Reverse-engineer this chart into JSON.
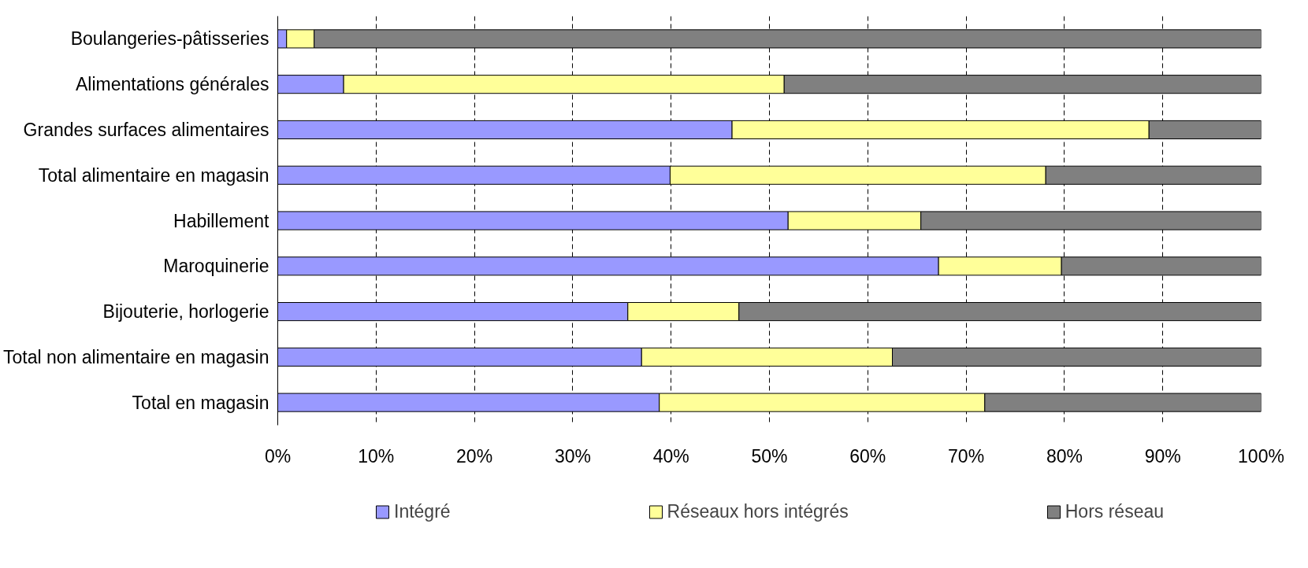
{
  "chart_data": {
    "type": "bar",
    "orientation": "horizontal",
    "stacked": true,
    "categories": [
      "Boulangeries-pâtisseries",
      "Alimentations générales",
      "Grandes surfaces alimentaires",
      "Total alimentaire en magasin",
      "Habillement",
      "Maroquinerie",
      "Bijouterie, horlogerie",
      "Total non alimentaire en magasin",
      "Total en magasin"
    ],
    "series": [
      {
        "name": "Intégré",
        "color": "#9999ff",
        "values": [
          0.9,
          6.7,
          46.2,
          39.9,
          51.9,
          67.2,
          35.6,
          37.0,
          38.8
        ]
      },
      {
        "name": "Réseaux hors intégrés",
        "color": "#ffff99",
        "values": [
          2.8,
          44.8,
          42.4,
          38.2,
          13.5,
          12.5,
          11.3,
          25.5,
          33.1
        ]
      },
      {
        "name": "Hors réseau",
        "color": "#808080",
        "values": [
          96.3,
          48.5,
          11.4,
          21.9,
          34.6,
          20.3,
          53.1,
          37.5,
          28.1
        ]
      }
    ],
    "xlim": [
      0,
      100
    ],
    "xticks": [
      {
        "value": 0,
        "label": "0%"
      },
      {
        "value": 10,
        "label": "10%"
      },
      {
        "value": 20,
        "label": "20%"
      },
      {
        "value": 30,
        "label": "30%"
      },
      {
        "value": 40,
        "label": "40%"
      },
      {
        "value": 50,
        "label": "50%"
      },
      {
        "value": 60,
        "label": "60%"
      },
      {
        "value": 70,
        "label": "70%"
      },
      {
        "value": 80,
        "label": "80%"
      },
      {
        "value": 90,
        "label": "90%"
      },
      {
        "value": 100,
        "label": "100%"
      }
    ],
    "grid": "x",
    "legend": "bottom"
  }
}
